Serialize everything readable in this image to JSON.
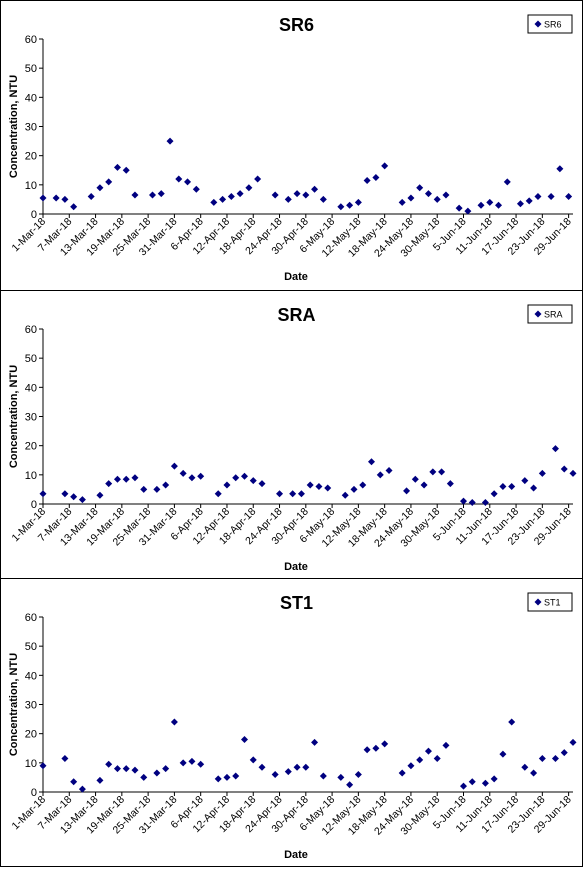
{
  "x_ticks": [
    "1-Mar-18",
    "7-Mar-18",
    "13-Mar-18",
    "19-Mar-18",
    "25-Mar-18",
    "31-Mar-18",
    "6-Apr-18",
    "12-Apr-18",
    "18-Apr-18",
    "24-Apr-18",
    "30-Apr-18",
    "6-May-18",
    "12-May-18",
    "18-May-18",
    "24-May-18",
    "30-May-18",
    "5-Jun-18",
    "11-Jun-18",
    "17-Jun-18",
    "23-Jun-18",
    "29-Jun-18"
  ],
  "y_ticks": [
    "0",
    "10",
    "20",
    "30",
    "40",
    "50",
    "60"
  ],
  "chart_data": [
    {
      "type": "scatter",
      "title": "SR6",
      "xlabel": "Date",
      "ylabel": "Concentration, NTU",
      "ylim": [
        0,
        60
      ],
      "xlim": [
        "2018-03-01",
        "2018-06-30"
      ],
      "grid": false,
      "legend_position": "top-right",
      "series": [
        {
          "name": "SR6",
          "color": "#000080",
          "points": [
            [
              "2018-03-01",
              5.5
            ],
            [
              "2018-03-04",
              5.5
            ],
            [
              "2018-03-06",
              5
            ],
            [
              "2018-03-08",
              2.5
            ],
            [
              "2018-03-12",
              6
            ],
            [
              "2018-03-14",
              9
            ],
            [
              "2018-03-16",
              11
            ],
            [
              "2018-03-18",
              16
            ],
            [
              "2018-03-20",
              15
            ],
            [
              "2018-03-22",
              6.5
            ],
            [
              "2018-03-26",
              6.5
            ],
            [
              "2018-03-28",
              7
            ],
            [
              "2018-03-30",
              25
            ],
            [
              "2018-04-01",
              12
            ],
            [
              "2018-04-03",
              11
            ],
            [
              "2018-04-05",
              8.5
            ],
            [
              "2018-04-09",
              4
            ],
            [
              "2018-04-11",
              5
            ],
            [
              "2018-04-13",
              6
            ],
            [
              "2018-04-15",
              7
            ],
            [
              "2018-04-17",
              9
            ],
            [
              "2018-04-19",
              12
            ],
            [
              "2018-04-23",
              6.5
            ],
            [
              "2018-04-26",
              5
            ],
            [
              "2018-04-28",
              7
            ],
            [
              "2018-04-30",
              6.5
            ],
            [
              "2018-05-02",
              8.5
            ],
            [
              "2018-05-04",
              5
            ],
            [
              "2018-05-08",
              2.5
            ],
            [
              "2018-05-10",
              3
            ],
            [
              "2018-05-12",
              4
            ],
            [
              "2018-05-14",
              11.5
            ],
            [
              "2018-05-16",
              12.5
            ],
            [
              "2018-05-18",
              16.5
            ],
            [
              "2018-05-22",
              4
            ],
            [
              "2018-05-24",
              5.5
            ],
            [
              "2018-05-26",
              9
            ],
            [
              "2018-05-28",
              7
            ],
            [
              "2018-05-30",
              5
            ],
            [
              "2018-06-01",
              6.5
            ],
            [
              "2018-06-04",
              2
            ],
            [
              "2018-06-06",
              1
            ],
            [
              "2018-06-09",
              3
            ],
            [
              "2018-06-11",
              4
            ],
            [
              "2018-06-13",
              3
            ],
            [
              "2018-06-15",
              11
            ],
            [
              "2018-06-18",
              3.5
            ],
            [
              "2018-06-20",
              4.5
            ],
            [
              "2018-06-22",
              6
            ],
            [
              "2018-06-25",
              6
            ],
            [
              "2018-06-27",
              15.5
            ],
            [
              "2018-06-29",
              6
            ]
          ]
        }
      ]
    },
    {
      "type": "scatter",
      "title": "SRA",
      "xlabel": "Date",
      "ylabel": "Concentration, NTU",
      "ylim": [
        0,
        60
      ],
      "xlim": [
        "2018-03-01",
        "2018-06-30"
      ],
      "grid": false,
      "legend_position": "top-right",
      "series": [
        {
          "name": "SRA",
          "color": "#000080",
          "points": [
            [
              "2018-03-01",
              3.5
            ],
            [
              "2018-03-06",
              3.5
            ],
            [
              "2018-03-08",
              2.5
            ],
            [
              "2018-03-10",
              1.5
            ],
            [
              "2018-03-14",
              3
            ],
            [
              "2018-03-16",
              7
            ],
            [
              "2018-03-18",
              8.5
            ],
            [
              "2018-03-20",
              8.5
            ],
            [
              "2018-03-22",
              9
            ],
            [
              "2018-03-24",
              5
            ],
            [
              "2018-03-27",
              5
            ],
            [
              "2018-03-29",
              6.5
            ],
            [
              "2018-03-31",
              13
            ],
            [
              "2018-04-02",
              10.5
            ],
            [
              "2018-04-04",
              9
            ],
            [
              "2018-04-06",
              9.5
            ],
            [
              "2018-04-10",
              3.5
            ],
            [
              "2018-04-12",
              6.5
            ],
            [
              "2018-04-14",
              9
            ],
            [
              "2018-04-16",
              9.5
            ],
            [
              "2018-04-18",
              8
            ],
            [
              "2018-04-20",
              7
            ],
            [
              "2018-04-24",
              3.5
            ],
            [
              "2018-04-27",
              3.5
            ],
            [
              "2018-04-29",
              3.5
            ],
            [
              "2018-05-01",
              6.5
            ],
            [
              "2018-05-03",
              6
            ],
            [
              "2018-05-05",
              5.5
            ],
            [
              "2018-05-09",
              3
            ],
            [
              "2018-05-11",
              5
            ],
            [
              "2018-05-13",
              6.5
            ],
            [
              "2018-05-15",
              14.5
            ],
            [
              "2018-05-17",
              10
            ],
            [
              "2018-05-19",
              11.5
            ],
            [
              "2018-05-23",
              4.5
            ],
            [
              "2018-05-25",
              8.5
            ],
            [
              "2018-05-27",
              6.5
            ],
            [
              "2018-05-29",
              11
            ],
            [
              "2018-05-31",
              11
            ],
            [
              "2018-06-02",
              7
            ],
            [
              "2018-06-05",
              1
            ],
            [
              "2018-06-07",
              0.5
            ],
            [
              "2018-06-10",
              0.5
            ],
            [
              "2018-06-12",
              3.5
            ],
            [
              "2018-06-14",
              6
            ],
            [
              "2018-06-16",
              6
            ],
            [
              "2018-06-19",
              8
            ],
            [
              "2018-06-21",
              5.5
            ],
            [
              "2018-06-23",
              10.5
            ],
            [
              "2018-06-26",
              19
            ],
            [
              "2018-06-28",
              12
            ],
            [
              "2018-06-30",
              10.5
            ]
          ]
        }
      ]
    },
    {
      "type": "scatter",
      "title": "ST1",
      "xlabel": "Date",
      "ylabel": "Concentration, NTU",
      "ylim": [
        0,
        60
      ],
      "xlim": [
        "2018-03-01",
        "2018-06-30"
      ],
      "grid": false,
      "legend_position": "top-right",
      "series": [
        {
          "name": "ST1",
          "color": "#000080",
          "points": [
            [
              "2018-03-01",
              9
            ],
            [
              "2018-03-06",
              11.5
            ],
            [
              "2018-03-08",
              3.5
            ],
            [
              "2018-03-10",
              1
            ],
            [
              "2018-03-14",
              4
            ],
            [
              "2018-03-16",
              9.5
            ],
            [
              "2018-03-18",
              8
            ],
            [
              "2018-03-20",
              8
            ],
            [
              "2018-03-22",
              7.5
            ],
            [
              "2018-03-24",
              5
            ],
            [
              "2018-03-27",
              6.5
            ],
            [
              "2018-03-29",
              8
            ],
            [
              "2018-03-31",
              24
            ],
            [
              "2018-04-02",
              10
            ],
            [
              "2018-04-04",
              10.5
            ],
            [
              "2018-04-06",
              9.5
            ],
            [
              "2018-04-10",
              4.5
            ],
            [
              "2018-04-12",
              5
            ],
            [
              "2018-04-14",
              5.5
            ],
            [
              "2018-04-16",
              18
            ],
            [
              "2018-04-18",
              11
            ],
            [
              "2018-04-20",
              8.5
            ],
            [
              "2018-04-23",
              6
            ],
            [
              "2018-04-26",
              7
            ],
            [
              "2018-04-28",
              8.5
            ],
            [
              "2018-04-30",
              8.5
            ],
            [
              "2018-05-02",
              17
            ],
            [
              "2018-05-04",
              5.5
            ],
            [
              "2018-05-08",
              5
            ],
            [
              "2018-05-10",
              2.5
            ],
            [
              "2018-05-12",
              6
            ],
            [
              "2018-05-14",
              14.5
            ],
            [
              "2018-05-16",
              15
            ],
            [
              "2018-05-18",
              16.5
            ],
            [
              "2018-05-22",
              6.5
            ],
            [
              "2018-05-24",
              9
            ],
            [
              "2018-05-26",
              11
            ],
            [
              "2018-05-28",
              14
            ],
            [
              "2018-05-30",
              11.5
            ],
            [
              "2018-06-01",
              16
            ],
            [
              "2018-06-05",
              2
            ],
            [
              "2018-06-07",
              3.5
            ],
            [
              "2018-06-10",
              3
            ],
            [
              "2018-06-12",
              4.5
            ],
            [
              "2018-06-14",
              13
            ],
            [
              "2018-06-16",
              24
            ],
            [
              "2018-06-19",
              8.5
            ],
            [
              "2018-06-21",
              6.5
            ],
            [
              "2018-06-23",
              11.5
            ],
            [
              "2018-06-26",
              11.5
            ],
            [
              "2018-06-28",
              13.5
            ],
            [
              "2018-06-30",
              17
            ]
          ]
        }
      ]
    }
  ]
}
